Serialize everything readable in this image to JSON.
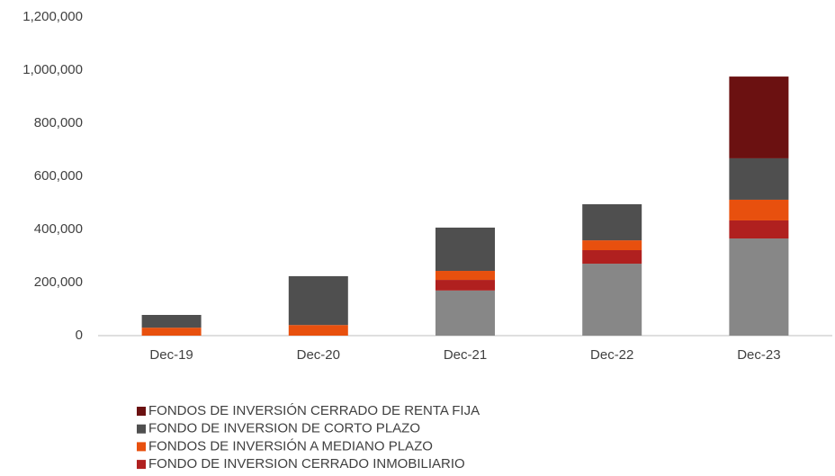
{
  "chart_data": {
    "type": "stacked_bar",
    "categories": [
      "Dec-19",
      "Dec-20",
      "Dec-21",
      "Dec-22",
      "Dec-23"
    ],
    "series": [
      {
        "color": "#878787",
        "values": [
          0,
          0,
          170000,
          271000,
          366000
        ]
      },
      {
        "name": "FONDO DE INVERSION CERRADO INMOBILIARIO",
        "color": "#b0201f",
        "values": [
          0,
          0,
          40000,
          51000,
          68000
        ]
      },
      {
        "name": "FONDOS DE INVERSIÓN A MEDIANO PLAZO",
        "color": "#e8500e",
        "values": [
          30000,
          40000,
          34000,
          37000,
          78000
        ]
      },
      {
        "name": "FONDO DE INVERSION DE CORTO PLAZO",
        "color": "#4f4f4f",
        "values": [
          48000,
          184000,
          163000,
          136000,
          156000
        ]
      },
      {
        "name": "FONDOS DE  INVERSIÓN CERRADO DE RENTA FIJA",
        "color": "#6b1111",
        "values": [
          0,
          0,
          0,
          0,
          308000
        ]
      }
    ],
    "ylim": [
      0,
      1200000
    ],
    "yticks": [
      0,
      {
        "value": 200000,
        "label": "200,000"
      },
      {
        "value": 400000,
        "label": "400,000"
      },
      {
        "value": 600000,
        "label": "600,000"
      },
      {
        "value": 800000,
        "label": "800,000"
      },
      {
        "value": 1000000,
        "label": "1,000,000"
      },
      {
        "value": 1200000,
        "label": "1,200,000"
      }
    ],
    "grid": false
  }
}
